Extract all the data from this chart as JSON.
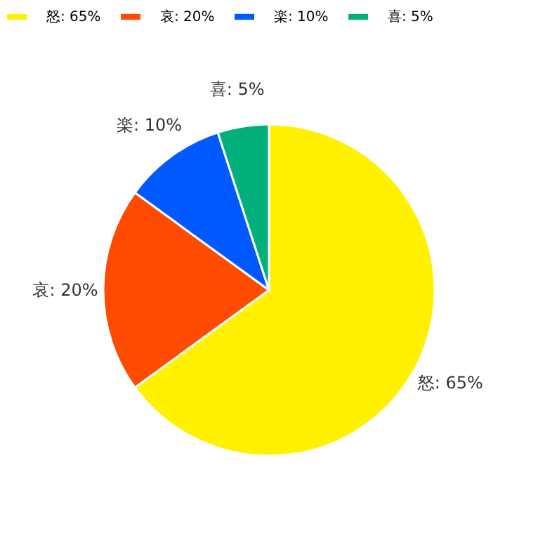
{
  "chart_data": {
    "type": "pie",
    "categories": [
      "怒: 65%",
      "哀: 20%",
      "楽: 10%",
      "喜: 5%"
    ],
    "values": [
      65,
      20,
      10,
      5
    ],
    "colors": [
      "#fff100",
      "#ff4b00",
      "#005aff",
      "#03af7a"
    ],
    "legend": "top"
  }
}
